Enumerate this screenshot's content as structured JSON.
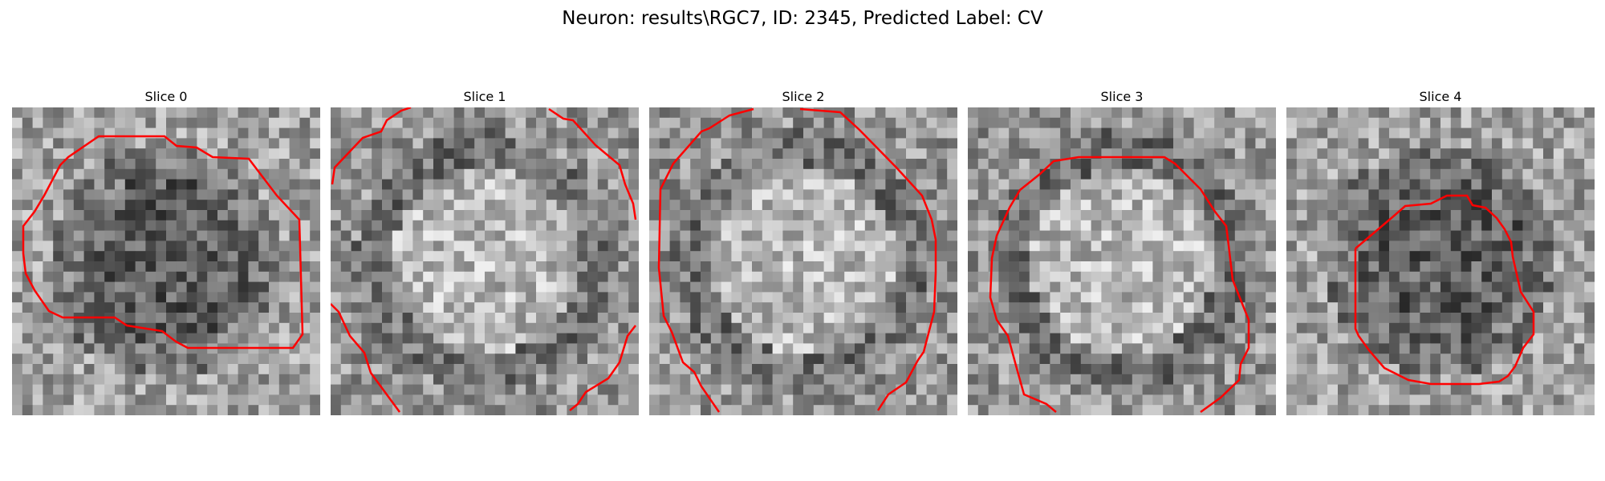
{
  "figure": {
    "title": "Neuron: results\\RGC7, ID: 2345, Predicted Label: CV"
  },
  "panels": [
    {
      "title": "Slice 0",
      "brightness": "dark-center"
    },
    {
      "title": "Slice 1",
      "brightness": "bright-center"
    },
    {
      "title": "Slice 2",
      "brightness": "bright-center"
    },
    {
      "title": "Slice 3",
      "brightness": "bright-center"
    },
    {
      "title": "Slice 4",
      "brightness": "dark-center"
    }
  ],
  "colors": {
    "contour": "#ff0000",
    "background": "#ffffff"
  }
}
